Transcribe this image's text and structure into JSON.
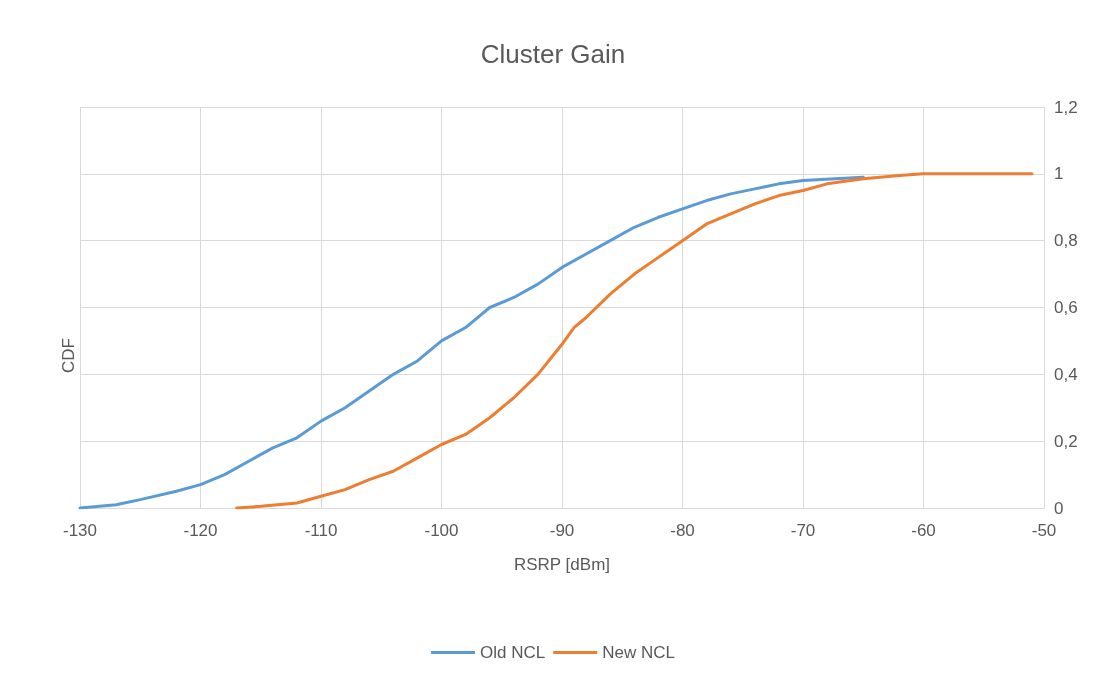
{
  "chart_data": {
    "type": "line",
    "title": "Cluster Gain",
    "xlabel": "RSRP [dBm]",
    "ylabel": "CDF",
    "xlim": [
      -130,
      -50
    ],
    "xticks": [
      -130,
      -120,
      -110,
      -100,
      -90,
      -80,
      -70,
      -60,
      -50
    ],
    "ylim": [
      0,
      1.2
    ],
    "yticks": [
      0,
      {
        "value": 0.2,
        "label": "0,2"
      },
      {
        "value": 0.4,
        "label": "0,4"
      },
      {
        "value": 0.6,
        "label": "0,6"
      },
      {
        "value": 0.8,
        "label": "0,8"
      },
      1,
      {
        "value": 1.2,
        "label": "1,2"
      }
    ],
    "grid": true,
    "legend": "bottom",
    "marker": "none",
    "line_style": "solid",
    "series": [
      {
        "name": "Old NCL",
        "color": "#5b9bd5",
        "x": [
          -130,
          -127,
          -125,
          -122,
          -120,
          -118,
          -116,
          -114,
          -112,
          -110,
          -108,
          -106,
          -104,
          -102,
          -100,
          -98,
          -96,
          -94,
          -92,
          -90,
          -88,
          -86,
          -84,
          -82,
          -80,
          -78,
          -76,
          -74,
          -72,
          -70,
          -65
        ],
        "values": [
          0,
          0.01,
          0.025,
          0.05,
          0.07,
          0.1,
          0.14,
          0.18,
          0.21,
          0.26,
          0.3,
          0.35,
          0.4,
          0.44,
          0.5,
          0.54,
          0.6,
          0.63,
          0.67,
          0.72,
          0.76,
          0.8,
          0.84,
          0.87,
          0.895,
          0.92,
          0.94,
          0.955,
          0.97,
          0.98,
          0.99
        ]
      },
      {
        "name": "New NCL",
        "color": "#ed7d31",
        "x": [
          -117,
          -115,
          -112,
          -110,
          -108,
          -106,
          -104,
          -102,
          -100,
          -98,
          -96,
          -94,
          -92,
          -90,
          -89,
          -88,
          -86,
          -84,
          -82,
          -80,
          -78,
          -76,
          -74,
          -72,
          -70,
          -68,
          -65,
          -62,
          -60,
          -51
        ],
        "values": [
          0,
          0.005,
          0.015,
          0.035,
          0.055,
          0.085,
          0.11,
          0.15,
          0.19,
          0.22,
          0.27,
          0.33,
          0.4,
          0.49,
          0.54,
          0.57,
          0.64,
          0.7,
          0.75,
          0.8,
          0.85,
          0.88,
          0.91,
          0.935,
          0.95,
          0.97,
          0.985,
          0.995,
          1,
          1
        ]
      }
    ]
  }
}
